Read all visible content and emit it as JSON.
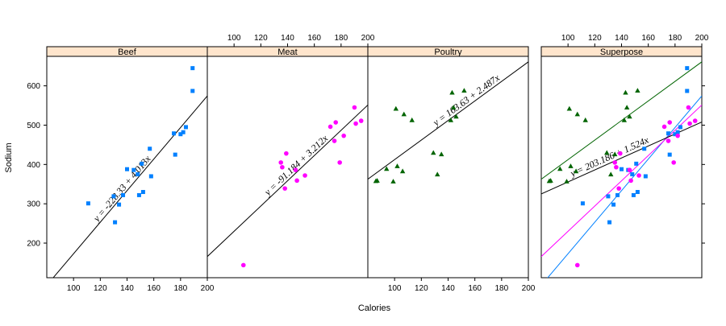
{
  "chart_data": {
    "type": "scatter",
    "xlabel": "Calories",
    "ylabel": "Sodium",
    "xlim": [
      80,
      200
    ],
    "ylim": [
      112,
      675
    ],
    "x_ticks": [
      100,
      120,
      140,
      160,
      180,
      200
    ],
    "y_ticks": [
      200,
      300,
      400,
      500,
      600
    ],
    "colors": {
      "strip_fill": "#ffe5cc",
      "frame": "#000000",
      "beef": "#0080ff",
      "meat": "#ff00ff",
      "poultry": "#006400",
      "fit_line": "#000000"
    },
    "panels": [
      {
        "name": "Beef",
        "marker": "square",
        "color": "#0080ff",
        "equation": "y = -228.33 + 4.013x",
        "fit": {
          "intercept": -228.33,
          "slope": 4.013
        },
        "points": [
          {
            "x": 111,
            "y": 301
          },
          {
            "x": 130,
            "y": 319
          },
          {
            "x": 131,
            "y": 253
          },
          {
            "x": 134,
            "y": 298
          },
          {
            "x": 137,
            "y": 322
          },
          {
            "x": 140,
            "y": 388
          },
          {
            "x": 145,
            "y": 386
          },
          {
            "x": 148,
            "y": 375
          },
          {
            "x": 149,
            "y": 322
          },
          {
            "x": 151,
            "y": 402
          },
          {
            "x": 152,
            "y": 330
          },
          {
            "x": 157,
            "y": 440
          },
          {
            "x": 158,
            "y": 370
          },
          {
            "x": 175,
            "y": 479
          },
          {
            "x": 176,
            "y": 425
          },
          {
            "x": 180,
            "y": 477
          },
          {
            "x": 182,
            "y": 482
          },
          {
            "x": 184,
            "y": 495
          },
          {
            "x": 189,
            "y": 587
          },
          {
            "x": 189,
            "y": 645
          }
        ]
      },
      {
        "name": "Meat",
        "marker": "circle",
        "color": "#ff00ff",
        "equation": "y = -91.184 + 3.212x",
        "fit": {
          "intercept": -91.184,
          "slope": 3.212
        },
        "points": [
          {
            "x": 107,
            "y": 144
          },
          {
            "x": 135,
            "y": 405
          },
          {
            "x": 136,
            "y": 393
          },
          {
            "x": 138,
            "y": 339
          },
          {
            "x": 139,
            "y": 428
          },
          {
            "x": 146,
            "y": 386
          },
          {
            "x": 147,
            "y": 359
          },
          {
            "x": 153,
            "y": 372
          },
          {
            "x": 172,
            "y": 496
          },
          {
            "x": 175,
            "y": 460
          },
          {
            "x": 176,
            "y": 507
          },
          {
            "x": 179,
            "y": 405
          },
          {
            "x": 182,
            "y": 473
          },
          {
            "x": 190,
            "y": 545
          },
          {
            "x": 191,
            "y": 504
          },
          {
            "x": 195,
            "y": 511
          }
        ]
      },
      {
        "name": "Poultry",
        "marker": "triangle",
        "color": "#006400",
        "equation": "y = 163.63 + 2.487x",
        "fit": {
          "intercept": 163.63,
          "slope": 2.487
        },
        "points": [
          {
            "x": 86,
            "y": 358
          },
          {
            "x": 87,
            "y": 359
          },
          {
            "x": 94,
            "y": 389
          },
          {
            "x": 99,
            "y": 357
          },
          {
            "x": 101,
            "y": 542
          },
          {
            "x": 102,
            "y": 396
          },
          {
            "x": 106,
            "y": 383
          },
          {
            "x": 107,
            "y": 528
          },
          {
            "x": 113,
            "y": 513
          },
          {
            "x": 129,
            "y": 430
          },
          {
            "x": 132,
            "y": 375
          },
          {
            "x": 135,
            "y": 426
          },
          {
            "x": 142,
            "y": 513
          },
          {
            "x": 143,
            "y": 583
          },
          {
            "x": 144,
            "y": 545
          },
          {
            "x": 146,
            "y": 522
          },
          {
            "x": 152,
            "y": 588
          }
        ]
      }
    ],
    "superpose": {
      "name": "Superpose",
      "equation": "y = 203.186 + 1.524x",
      "overall_fit": {
        "intercept": 203.186,
        "slope": 1.524
      }
    }
  }
}
